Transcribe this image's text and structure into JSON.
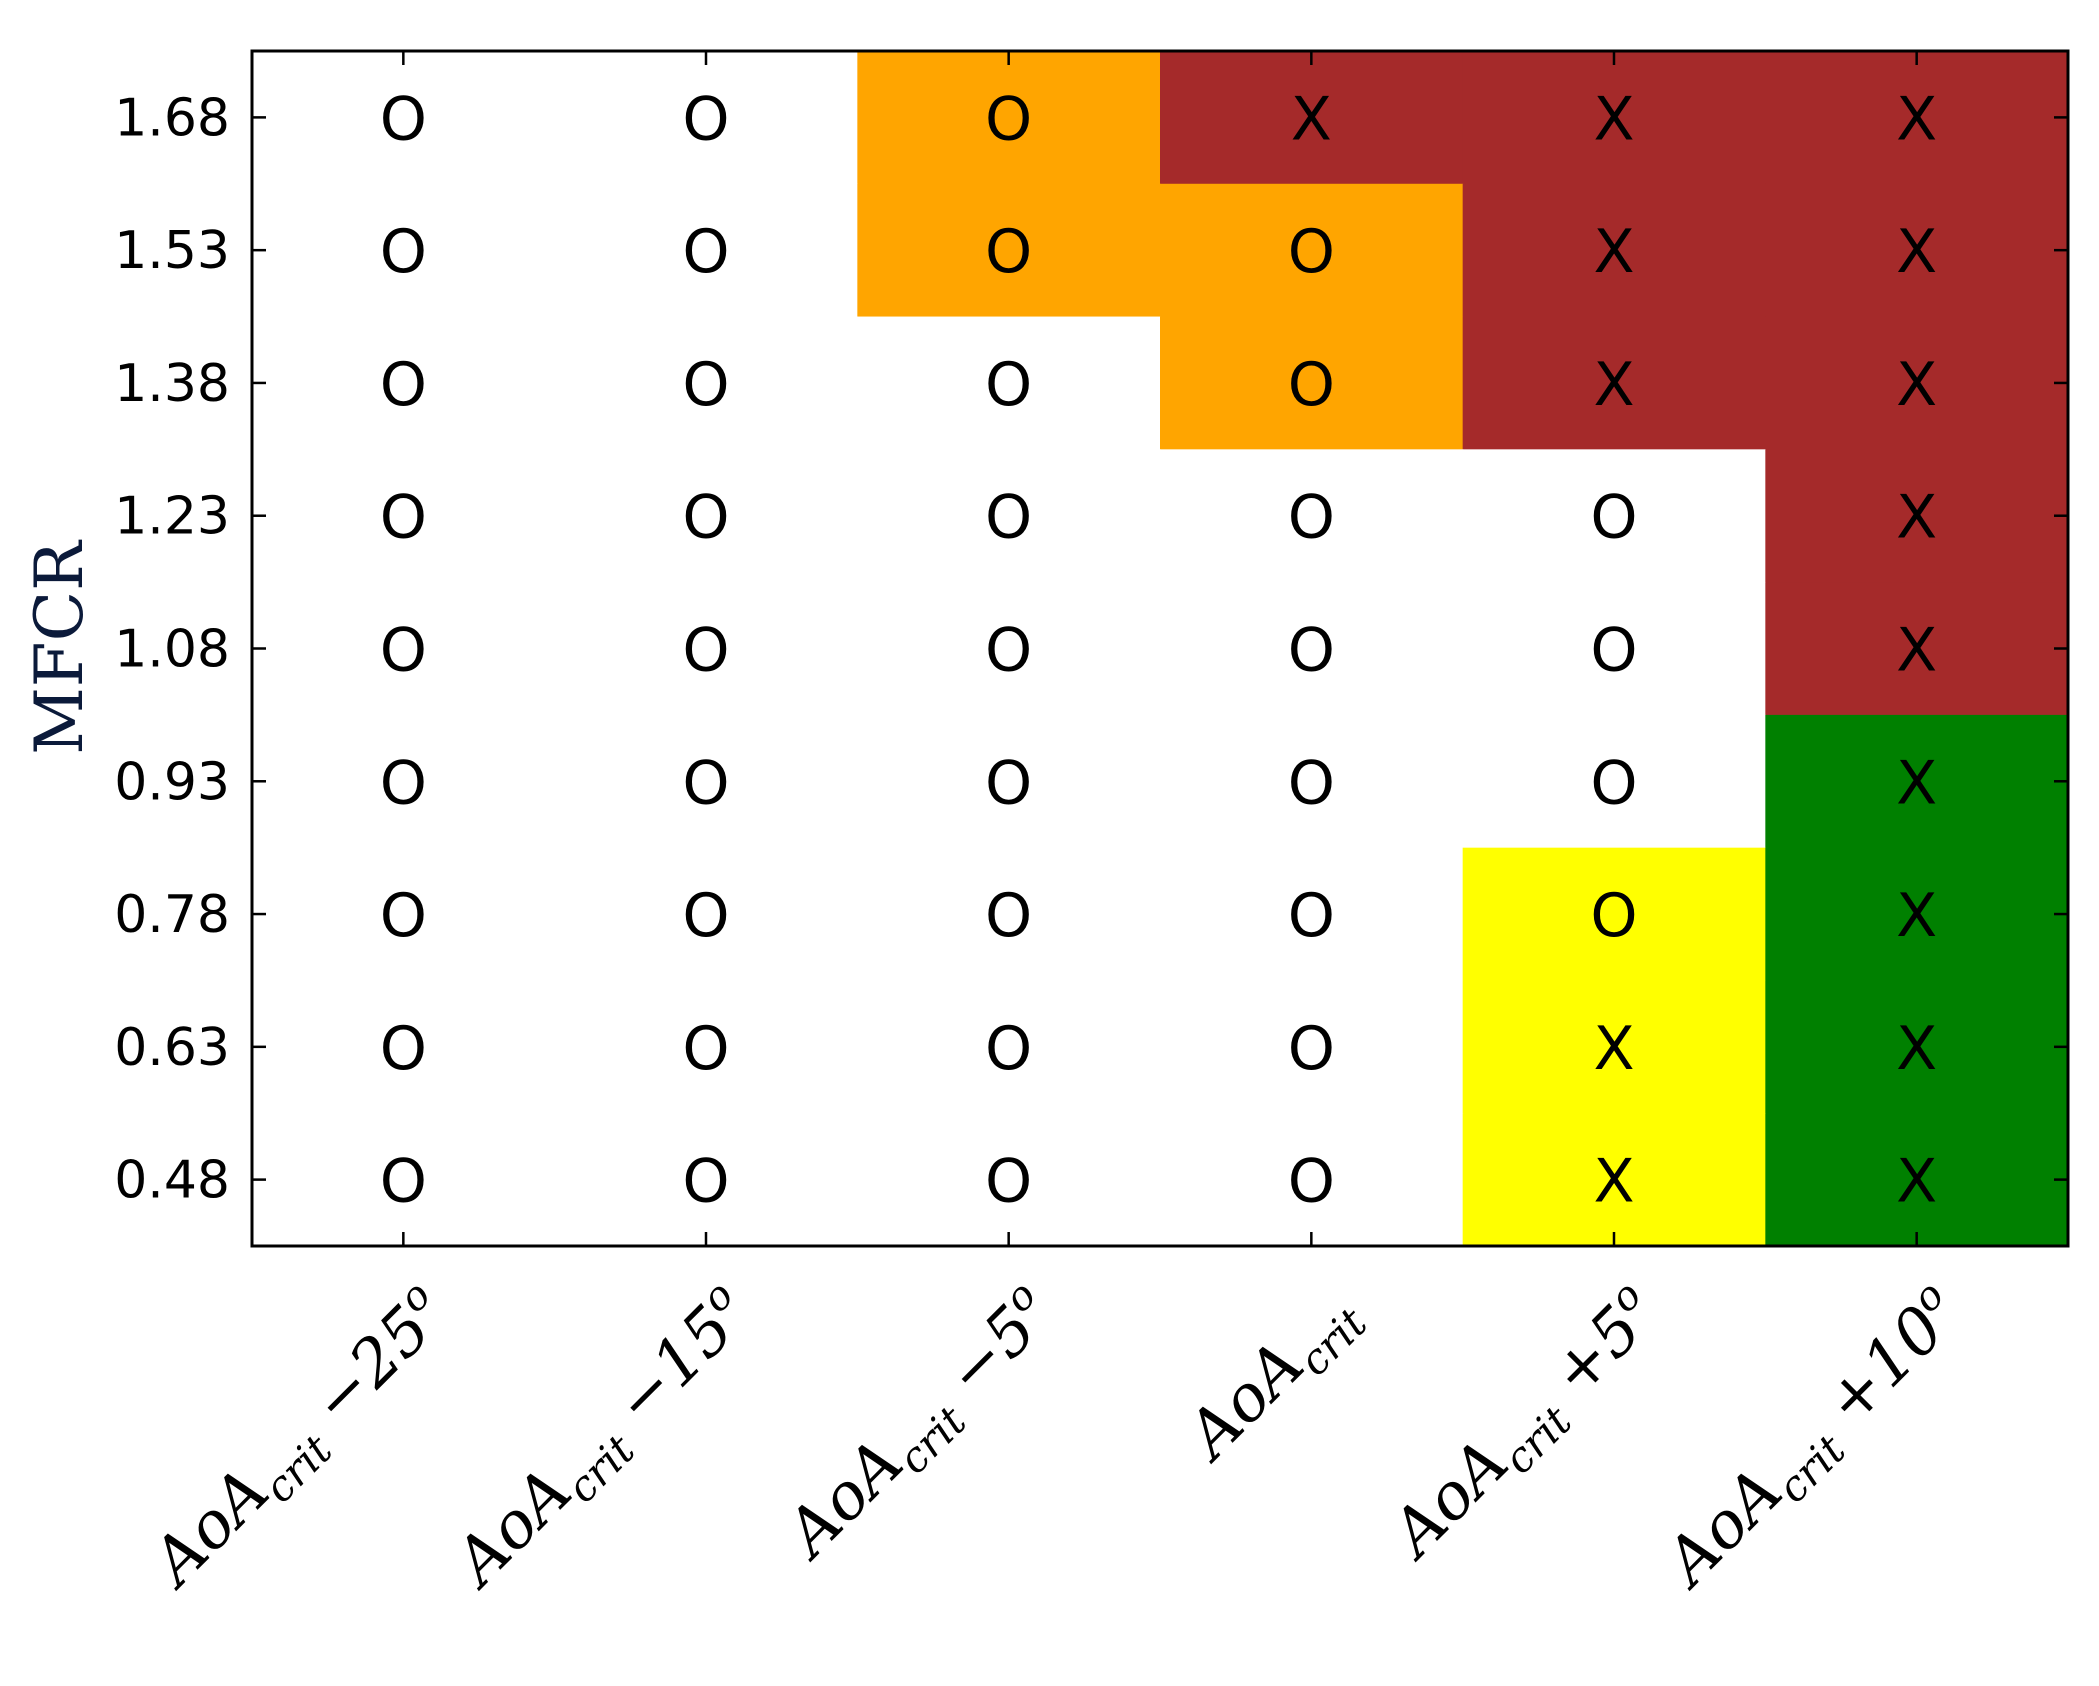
{
  "chart_data": {
    "type": "heatmap",
    "ylabel": "MFCR",
    "x_categories": [
      {
        "base": "AoA",
        "sub": "crit",
        "suffix": " −25",
        "sup": "o"
      },
      {
        "base": "AoA",
        "sub": "crit",
        "suffix": " −15",
        "sup": "o"
      },
      {
        "base": "AoA",
        "sub": "crit",
        "suffix": " −5",
        "sup": "o"
      },
      {
        "base": "AoA",
        "sub": "crit",
        "suffix": "",
        "sup": ""
      },
      {
        "base": "AoA",
        "sub": "crit",
        "suffix": " +5",
        "sup": "o"
      },
      {
        "base": "AoA",
        "sub": "crit",
        "suffix": " +10",
        "sup": "o"
      }
    ],
    "y_categories": [
      "1.68",
      "1.53",
      "1.38",
      "1.23",
      "1.08",
      "0.93",
      "0.78",
      "0.63",
      "0.48"
    ],
    "colors": {
      "white": "#ffffff",
      "orange": "#ffa500",
      "brown": "#a52a2a",
      "green": "#008000",
      "yellow": "#ffff00"
    },
    "cells": [
      [
        {
          "mark": "O",
          "color": "white"
        },
        {
          "mark": "O",
          "color": "white"
        },
        {
          "mark": "O",
          "color": "orange"
        },
        {
          "mark": "X",
          "color": "brown"
        },
        {
          "mark": "X",
          "color": "brown"
        },
        {
          "mark": "X",
          "color": "brown"
        }
      ],
      [
        {
          "mark": "O",
          "color": "white"
        },
        {
          "mark": "O",
          "color": "white"
        },
        {
          "mark": "O",
          "color": "orange"
        },
        {
          "mark": "O",
          "color": "orange"
        },
        {
          "mark": "X",
          "color": "brown"
        },
        {
          "mark": "X",
          "color": "brown"
        }
      ],
      [
        {
          "mark": "O",
          "color": "white"
        },
        {
          "mark": "O",
          "color": "white"
        },
        {
          "mark": "O",
          "color": "white"
        },
        {
          "mark": "O",
          "color": "orange"
        },
        {
          "mark": "X",
          "color": "brown"
        },
        {
          "mark": "X",
          "color": "brown"
        }
      ],
      [
        {
          "mark": "O",
          "color": "white"
        },
        {
          "mark": "O",
          "color": "white"
        },
        {
          "mark": "O",
          "color": "white"
        },
        {
          "mark": "O",
          "color": "white"
        },
        {
          "mark": "O",
          "color": "white"
        },
        {
          "mark": "X",
          "color": "brown"
        }
      ],
      [
        {
          "mark": "O",
          "color": "white"
        },
        {
          "mark": "O",
          "color": "white"
        },
        {
          "mark": "O",
          "color": "white"
        },
        {
          "mark": "O",
          "color": "white"
        },
        {
          "mark": "O",
          "color": "white"
        },
        {
          "mark": "X",
          "color": "brown"
        }
      ],
      [
        {
          "mark": "O",
          "color": "white"
        },
        {
          "mark": "O",
          "color": "white"
        },
        {
          "mark": "O",
          "color": "white"
        },
        {
          "mark": "O",
          "color": "white"
        },
        {
          "mark": "O",
          "color": "white"
        },
        {
          "mark": "X",
          "color": "green"
        }
      ],
      [
        {
          "mark": "O",
          "color": "white"
        },
        {
          "mark": "O",
          "color": "white"
        },
        {
          "mark": "O",
          "color": "white"
        },
        {
          "mark": "O",
          "color": "white"
        },
        {
          "mark": "O",
          "color": "yellow"
        },
        {
          "mark": "X",
          "color": "green"
        }
      ],
      [
        {
          "mark": "O",
          "color": "white"
        },
        {
          "mark": "O",
          "color": "white"
        },
        {
          "mark": "O",
          "color": "white"
        },
        {
          "mark": "O",
          "color": "white"
        },
        {
          "mark": "X",
          "color": "yellow"
        },
        {
          "mark": "X",
          "color": "green"
        }
      ],
      [
        {
          "mark": "O",
          "color": "white"
        },
        {
          "mark": "O",
          "color": "white"
        },
        {
          "mark": "O",
          "color": "white"
        },
        {
          "mark": "O",
          "color": "white"
        },
        {
          "mark": "X",
          "color": "yellow"
        },
        {
          "mark": "X",
          "color": "green"
        }
      ]
    ],
    "grid": false,
    "legend": "none"
  }
}
